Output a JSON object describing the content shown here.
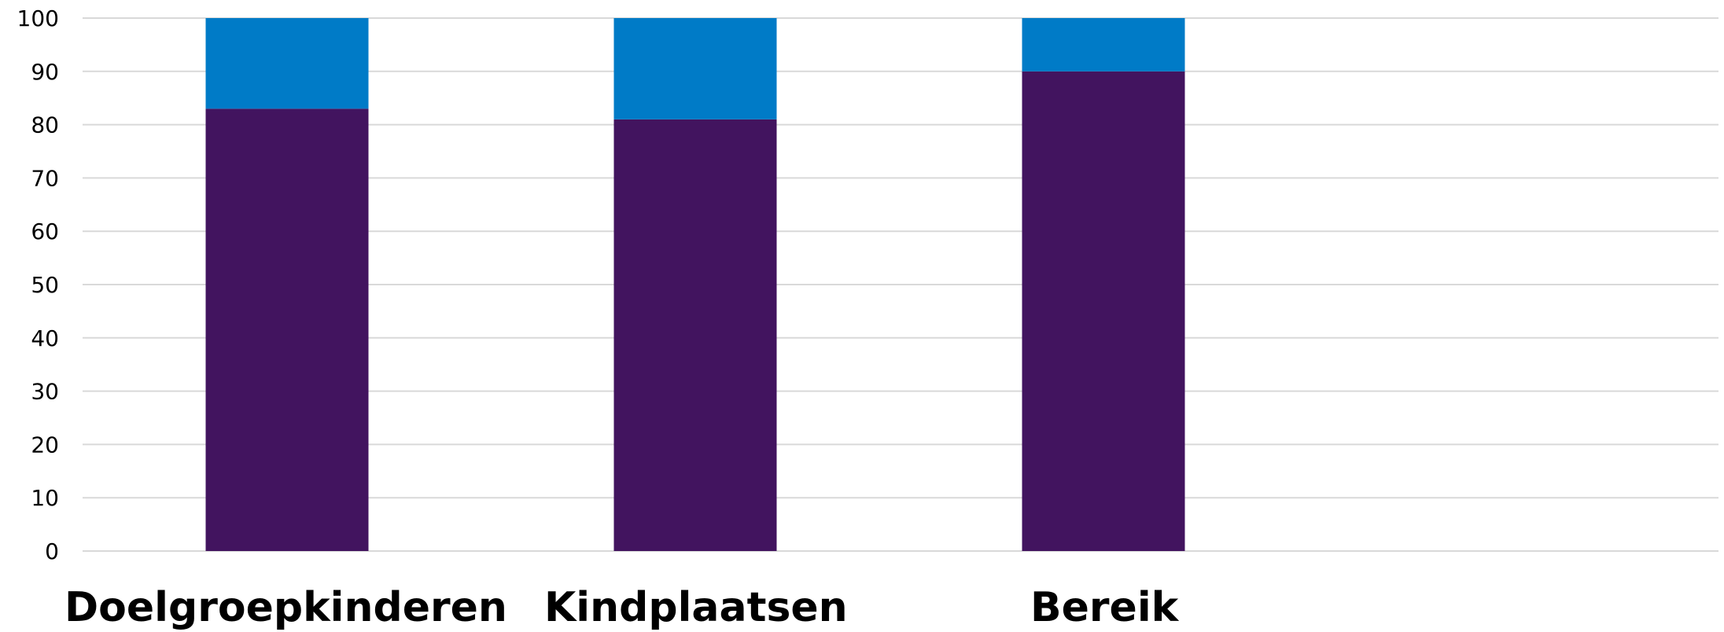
{
  "chart_data": {
    "type": "bar",
    "stacked": true,
    "categories": [
      "Doelgroepkinderen",
      "Kindplaatsen",
      "Bereik"
    ],
    "series": [
      {
        "values": [
          83,
          81,
          90
        ],
        "color": "#42145f"
      },
      {
        "values": [
          17,
          19,
          10
        ],
        "color": "#007bc7"
      }
    ],
    "title": "",
    "xlabel": "",
    "ylabel": "",
    "ylim": [
      0,
      100
    ],
    "yticks": [
      0,
      10,
      20,
      30,
      40,
      50,
      60,
      70,
      80,
      90,
      100
    ],
    "grid": true,
    "legend": "none"
  }
}
